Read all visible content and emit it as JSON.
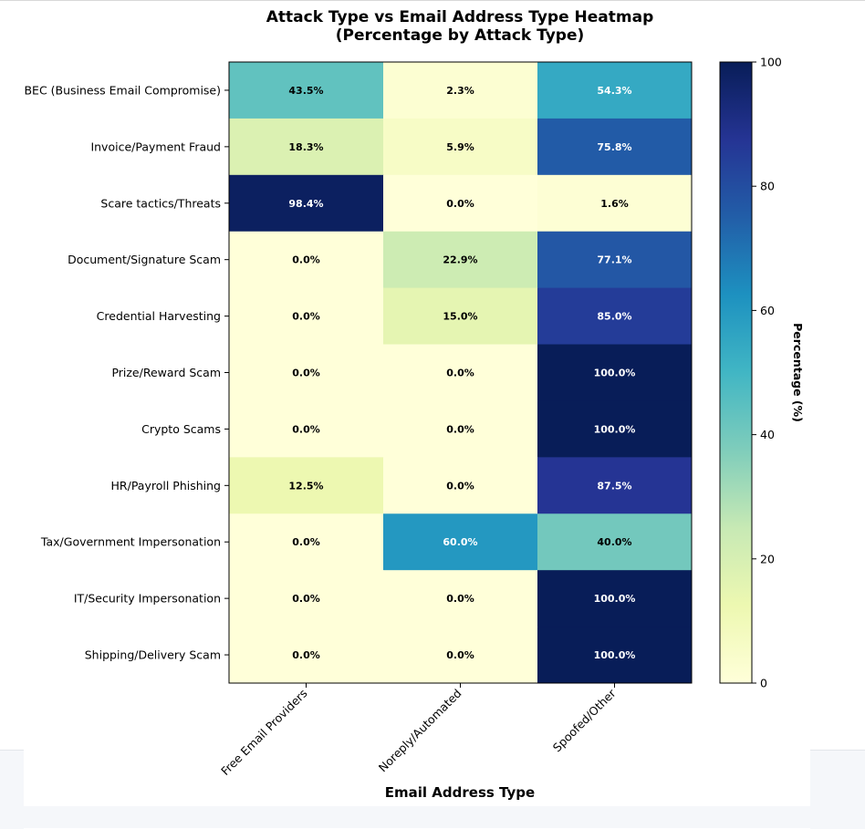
{
  "chart_data": {
    "type": "heatmap",
    "title_lines": [
      "Attack Type vs Email Address Type Heatmap",
      "(Percentage by Attack Type)"
    ],
    "xlabel": "Email Address Type",
    "colorbar_label": "Percentage (%)",
    "colorbar_range": [
      0,
      100
    ],
    "colorbar_ticks": [
      0,
      20,
      40,
      60,
      80,
      100
    ],
    "colormap": "YlGnBu",
    "columns": [
      "Free Email Providers",
      "Noreply/Automated",
      "Spoofed/Other"
    ],
    "rows": [
      "BEC (Business Email Compromise)",
      "Invoice/Payment Fraud",
      "Scare tactics/Threats",
      "Document/Signature Scam",
      "Credential Harvesting",
      "Prize/Reward Scam",
      "Crypto Scams",
      "HR/Payroll Phishing",
      "Tax/Government Impersonation",
      "IT/Security Impersonation",
      "Shipping/Delivery Scam"
    ],
    "values": [
      [
        43.5,
        2.3,
        54.3
      ],
      [
        18.3,
        5.9,
        75.8
      ],
      [
        98.4,
        0.0,
        1.6
      ],
      [
        0.0,
        22.9,
        77.1
      ],
      [
        0.0,
        15.0,
        85.0
      ],
      [
        0.0,
        0.0,
        100.0
      ],
      [
        0.0,
        0.0,
        100.0
      ],
      [
        12.5,
        0.0,
        87.5
      ],
      [
        0.0,
        60.0,
        40.0
      ],
      [
        0.0,
        0.0,
        100.0
      ],
      [
        0.0,
        0.0,
        100.0
      ]
    ],
    "value_format": "{v}%"
  }
}
